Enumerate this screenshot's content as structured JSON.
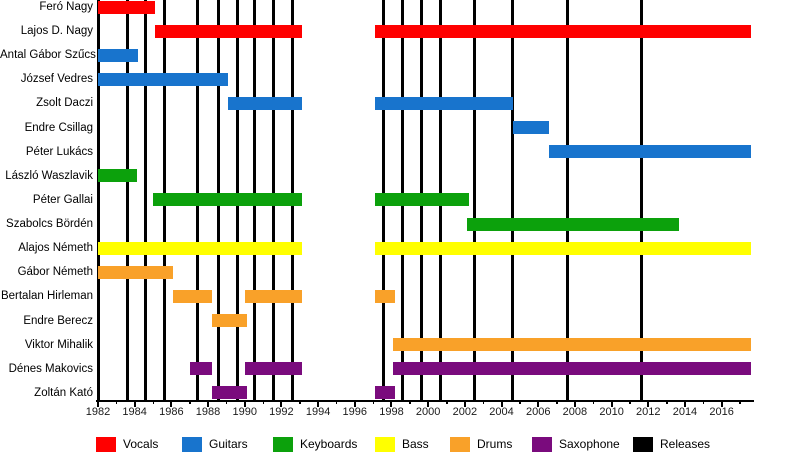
{
  "chart_data": {
    "type": "bar",
    "subtype": "band-membership-timeline",
    "title": "",
    "xlabel": "",
    "ylabel": "",
    "grid": false,
    "legend_position": "bottom",
    "x_axis": {
      "min": 1982,
      "max": 2017.6,
      "minor_tick_step": 1,
      "major_tick_step": 2,
      "tick_labels": [
        "1982",
        "1984",
        "1986",
        "1988",
        "1990",
        "1992",
        "1994",
        "1996",
        "1998",
        "2000",
        "2002",
        "2004",
        "2006",
        "2008",
        "2010",
        "2012",
        "2014",
        "2016"
      ]
    },
    "colors": {
      "Vocals": "#FF0000",
      "Guitars": "#1874CD",
      "Keyboards": "#0CA10C",
      "Bass": "#FFFF00",
      "Drums": "#F9A129",
      "Saxophone": "#7A0B7D",
      "Releases": "#000000"
    },
    "members": [
      {
        "name": "Feró Nagy",
        "role": "Vocals",
        "stints": [
          [
            1982.0,
            1985.1
          ]
        ]
      },
      {
        "name": "Lajos D. Nagy",
        "role": "Vocals",
        "stints": [
          [
            1985.1,
            1993.1
          ],
          [
            1997.1,
            2017.6
          ]
        ]
      },
      {
        "name": "Antal Gábor Szűcs",
        "role": "Guitars",
        "stints": [
          [
            1982.0,
            1984.2
          ]
        ]
      },
      {
        "name": "József Vedres",
        "role": "Guitars",
        "stints": [
          [
            1982.0,
            1989.1
          ]
        ]
      },
      {
        "name": "Zsolt Daczi",
        "role": "Guitars",
        "stints": [
          [
            1989.1,
            1993.1
          ],
          [
            1997.1,
            2004.6
          ]
        ]
      },
      {
        "name": "Endre Csillag",
        "role": "Guitars",
        "stints": [
          [
            2004.6,
            2006.6
          ]
        ]
      },
      {
        "name": "Péter Lukács",
        "role": "Guitars",
        "stints": [
          [
            2006.6,
            2017.6
          ]
        ]
      },
      {
        "name": "László Waszlavik",
        "role": "Keyboards",
        "stints": [
          [
            1982.0,
            1984.1
          ]
        ]
      },
      {
        "name": "Péter Gallai",
        "role": "Keyboards",
        "stints": [
          [
            1985.0,
            1993.1
          ],
          [
            1997.1,
            2002.2
          ]
        ]
      },
      {
        "name": "Szabolcs Bördén",
        "role": "Keyboards",
        "stints": [
          [
            2002.1,
            2013.7
          ]
        ]
      },
      {
        "name": "Alajos Németh",
        "role": "Bass",
        "stints": [
          [
            1982.0,
            1993.1
          ],
          [
            1997.1,
            2017.6
          ]
        ]
      },
      {
        "name": "Gábor Németh",
        "role": "Drums",
        "stints": [
          [
            1982.0,
            1986.1
          ]
        ]
      },
      {
        "name": "Bertalan Hirleman",
        "role": "Drums",
        "stints": [
          [
            1986.1,
            1988.2
          ],
          [
            1990.0,
            1993.1
          ],
          [
            1997.1,
            1998.2
          ]
        ]
      },
      {
        "name": "Endre Berecz",
        "role": "Drums",
        "stints": [
          [
            1988.2,
            1990.1
          ]
        ]
      },
      {
        "name": "Viktor Mihalik",
        "role": "Drums",
        "stints": [
          [
            1998.1,
            2017.6
          ]
        ]
      },
      {
        "name": "Dénes Makovics",
        "role": "Saxophone",
        "stints": [
          [
            1987.0,
            1988.2
          ],
          [
            1990.0,
            1993.1
          ],
          [
            1998.1,
            2017.6
          ]
        ]
      },
      {
        "name": "Zoltán Kató",
        "role": "Saxophone",
        "stints": [
          [
            1988.2,
            1990.1
          ],
          [
            1997.1,
            1998.2
          ]
        ]
      }
    ],
    "releases": [
      1983.6,
      1984.6,
      1985.6,
      1987.45,
      1988.55,
      1989.6,
      1990.55,
      1991.55,
      1992.6,
      1997.55,
      1998.6,
      1999.65,
      2000.65,
      2002.55,
      2004.6,
      2007.6,
      2011.65
    ],
    "legend": {
      "items": [
        {
          "label": "Vocals",
          "role": "Vocals"
        },
        {
          "label": "Guitars",
          "role": "Guitars"
        },
        {
          "label": "Keyboards",
          "role": "Keyboards"
        },
        {
          "label": "Bass",
          "role": "Bass"
        },
        {
          "label": "Drums",
          "role": "Drums"
        },
        {
          "label": "Saxophone",
          "role": "Saxophone"
        },
        {
          "label": "Releases",
          "role": "Releases"
        }
      ]
    }
  }
}
